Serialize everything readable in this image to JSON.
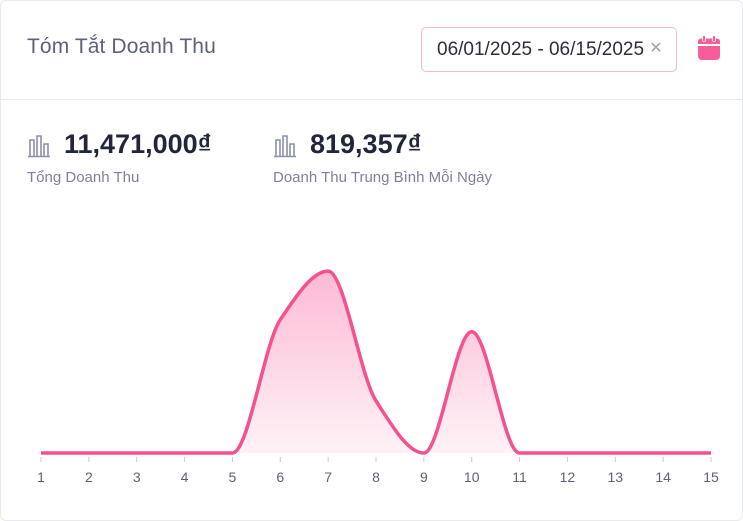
{
  "header": {
    "title": "Tóm Tắt Doanh Thu",
    "date_range": "06/01/2025  -  06/15/2025",
    "clear_icon": "close-icon",
    "calendar_icon": "calendar-icon"
  },
  "stats": {
    "total": {
      "value": "11,471,000₫",
      "label": "Tổng Doanh Thu",
      "icon": "bar-chart-icon"
    },
    "daily_avg": {
      "value": "819,357₫",
      "label": "Doanh Thu Trung Bình Mỗi Ngày",
      "icon": "bar-chart-icon"
    }
  },
  "colors": {
    "accent": "#fd5c9d",
    "line": "#f5508f",
    "fill_top": "#fdbad5",
    "fill_bottom": "#fff2f7"
  },
  "chart_data": {
    "type": "area",
    "x": [
      1,
      2,
      3,
      4,
      5,
      6,
      7,
      8,
      9,
      10,
      11,
      12,
      13,
      14,
      15
    ],
    "values": [
      0,
      0,
      0,
      0,
      0,
      1.1,
      1.5,
      0.43,
      0,
      1.0,
      0,
      0,
      0,
      0,
      0
    ],
    "title": "",
    "xlabel": "",
    "ylabel": "",
    "ylim": [
      0,
      1.65
    ],
    "grid": false,
    "legend": "none",
    "note": "y axis not labeled; values are relative heights read from the curve"
  }
}
